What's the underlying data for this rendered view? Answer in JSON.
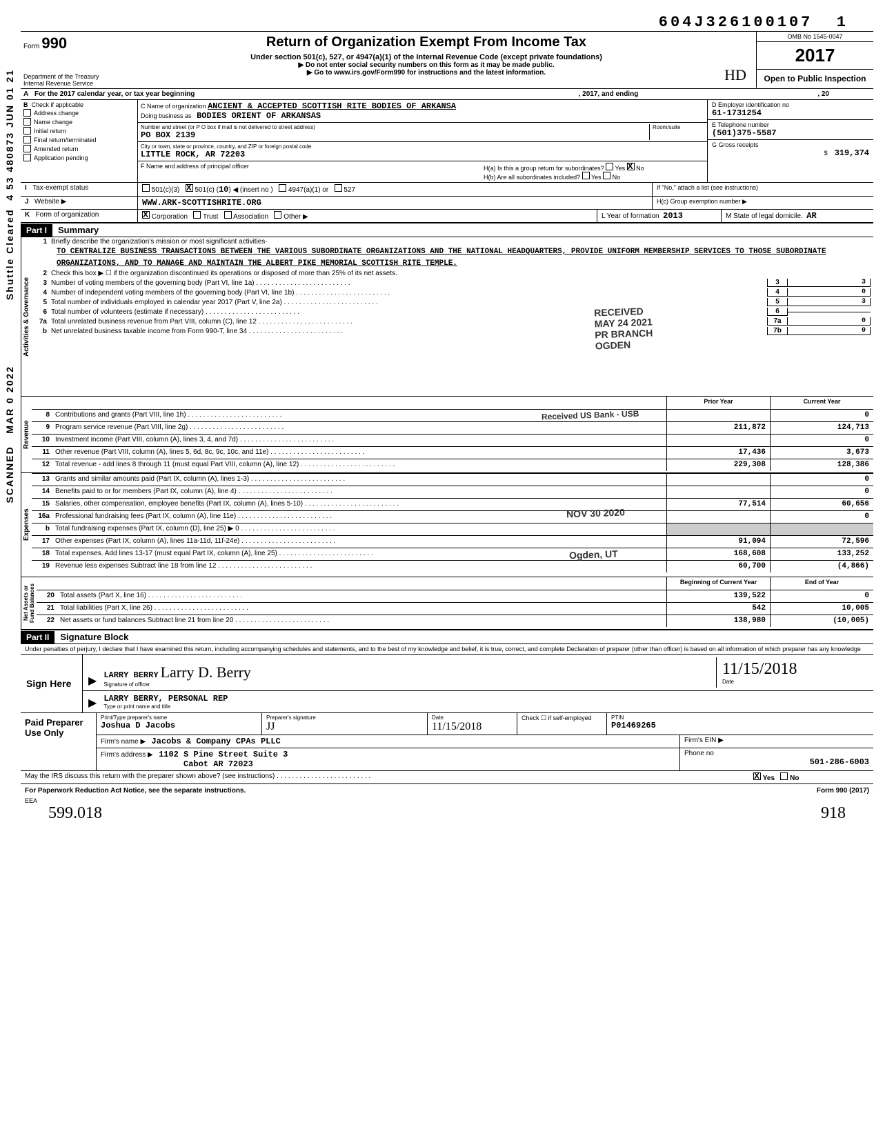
{
  "header_id": "604J326100107",
  "header_id_trail": "1",
  "omb_no": "OMB No 1545-0047",
  "tax_year": "2017",
  "form_label": "Form",
  "form_number": "990",
  "title": "Return of Organization Exempt From Income Tax",
  "subtitle": "Under section 501(c), 527, or 4947(a)(1) of the Internal Revenue Code (except private foundations)",
  "arrow1": "▶ Do not enter social security numbers on this form as it may be made public.",
  "arrow2": "▶ Go to www.irs.gov/Form990 for instructions and the latest information.",
  "open_public": "Open to Public Inspection",
  "dept1": "Department of the Treasury",
  "dept2": "Internal Revenue Service",
  "row_a": "For the 2017 calendar year, or tax year beginning",
  "row_a_mid": ", 2017, and ending",
  "row_a_end": ", 20",
  "section_b": {
    "label": "Check if applicable",
    "items": [
      "Address change",
      "Name change",
      "Initial return",
      "Final return/terminated",
      "Amended return",
      "Application pending"
    ]
  },
  "section_c": {
    "name_label": "C  Name of organization",
    "name": "ANCIENT & ACCEPTED SCOTTISH RITE BODIES OF ARKANSA",
    "dba_label": "Doing business as",
    "dba": "BODIES ORIENT OF ARKANSAS",
    "street_label": "Number and street (or P O  box if mail is not delivered to street address)",
    "room_label": "Room/suite",
    "street": "PO BOX 2139",
    "city_label": "City or town, state or province, country, and ZIP or foreign postal code",
    "city": "LITTLE ROCK, AR 72203",
    "officer_label": "F  Name and address of principal officer"
  },
  "section_d": {
    "ein_label": "D   Employer identification no",
    "ein": "61-1731254",
    "phone_label": "E   Telephone number",
    "phone": "(501)375-5587",
    "gross_label": "G   Gross receipts",
    "gross": "319,374"
  },
  "section_h": {
    "ha": "H(a) Is this a group return for subordinates?",
    "hb": "H(b) Are all subordinates included?",
    "hc_note": "If \"No,\" attach a list (see instructions)",
    "hc": "H(c)   Group exemption number  ▶"
  },
  "row_i": {
    "label": "Tax-exempt status",
    "opts": [
      "501(c)(3)",
      "501(c) (",
      "10",
      ")  ◀ (insert no )",
      "4947(a)(1) or",
      "527"
    ]
  },
  "row_j": {
    "label": "Website  ▶",
    "value": "WWW.ARK-SCOTTISHRITE.ORG"
  },
  "row_k": {
    "label": "Form of organization",
    "opts": [
      "Corporation",
      "Trust",
      "Association",
      "Other ▶"
    ],
    "year_label": "L  Year of formation",
    "year": "2013",
    "state_label": "M   State of legal domicile.",
    "state": "AR"
  },
  "part1": {
    "header": "Part I",
    "title": "Summary"
  },
  "gov_label": "Activities & Governance",
  "mission_label": "Briefly describe the organization's mission or most significant activities·",
  "mission": "TO CENTRALIZE BUSINESS TRANSACTIONS BETWEEN THE VARIOUS SUBORDINATE ORGANIZATIONS AND THE NATIONAL HEADQUARTERS, PROVIDE UNIFORM MEMBERSHIP SERVICES TO THOSE SUBORDINATE ORGANIZATIONS, AND TO MANAGE AND MAINTAIN THE ALBERT PIKE MEMORIAL SCOTTISH RITE TEMPLE.",
  "line2": "Check this box ▶ ☐ if the organization discontinued its operations or disposed of more than 25% of its net assets.",
  "gov_lines": [
    {
      "n": "3",
      "d": "Number of voting members of the governing body (Part VI, line 1a)",
      "box": "3",
      "v": "3"
    },
    {
      "n": "4",
      "d": "Number of independent voting members of the governing body (Part VI, line 1b)",
      "box": "4",
      "v": "0"
    },
    {
      "n": "5",
      "d": "Total number of individuals employed in calendar year 2017 (Part V, line 2a)",
      "box": "5",
      "v": "3"
    },
    {
      "n": "6",
      "d": "Total number of volunteers (estimate if necessary)",
      "box": "6",
      "v": ""
    },
    {
      "n": "7a",
      "d": "Total unrelated business revenue from Part VIII, column (C), line 12",
      "box": "7a",
      "v": "0"
    },
    {
      "n": "b",
      "d": "Net unrelated business taxable income from Form 990-T, line 34",
      "box": "7b",
      "v": "0"
    }
  ],
  "stamps": {
    "received": "RECEIVED",
    "date1": "MAY 24 2021",
    "branch": "PR BRANCH",
    "ogden1": "OGDEN",
    "received2": "Received US Bank - USB",
    "date2": "NOV 30 2020",
    "ogden2": "Ogden, UT"
  },
  "rev_label": "Revenue",
  "fin_head_prior": "Prior Year",
  "fin_head_current": "Current Year",
  "rev_lines": [
    {
      "n": "8",
      "d": "Contributions and grants (Part VIII, line 1h)",
      "p": "",
      "c": "0"
    },
    {
      "n": "9",
      "d": "Program service revenue (Part VIII, line 2g)",
      "p": "211,872",
      "c": "124,713"
    },
    {
      "n": "10",
      "d": "Investment income (Part VIII, column (A), lines 3, 4, and 7d)",
      "p": "",
      "c": "0"
    },
    {
      "n": "11",
      "d": "Other revenue (Part VIII, column (A), lines 5, 6d, 8c, 9c, 10c, and 11e)",
      "p": "17,436",
      "c": "3,673"
    },
    {
      "n": "12",
      "d": "Total revenue - add lines 8 through 11 (must equal Part VIII, column (A), line 12)",
      "p": "229,308",
      "c": "128,386"
    }
  ],
  "exp_label": "Expenses",
  "exp_lines": [
    {
      "n": "13",
      "d": "Grants and similar amounts paid (Part IX, column (A), lines 1-3)",
      "p": "",
      "c": "0"
    },
    {
      "n": "14",
      "d": "Benefits paid to or for members (Part IX, column (A), line 4)",
      "p": "",
      "c": "0"
    },
    {
      "n": "15",
      "d": "Salaries, other compensation, employee benefits (Part IX, column (A), lines 5-10)",
      "p": "77,514",
      "c": "60,656"
    },
    {
      "n": "16a",
      "d": "Professional fundraising fees (Part IX, column (A), line 11e)",
      "p": "",
      "c": "0"
    },
    {
      "n": "b",
      "d": "Total fundraising expenses (Part IX, column (D), line 25)  ▶                               0",
      "p": "",
      "c": ""
    },
    {
      "n": "17",
      "d": "Other expenses (Part IX, column (A), lines 11a-11d, 11f-24e)",
      "p": "91,094",
      "c": "72,596"
    },
    {
      "n": "18",
      "d": "Total expenses.  Add lines 13-17 (must equal Part IX, column (A), line 25)",
      "p": "168,608",
      "c": "133,252"
    },
    {
      "n": "19",
      "d": "Revenue less expenses  Subtract line 18 from line 12",
      "p": "60,700",
      "c": "(4,866)"
    }
  ],
  "net_label": "Net Assets or Fund Balances",
  "net_head_begin": "Beginning of Current Year",
  "net_head_end": "End of Year",
  "net_lines": [
    {
      "n": "20",
      "d": "Total assets (Part X, line 16)",
      "p": "139,522",
      "c": "0"
    },
    {
      "n": "21",
      "d": "Total liabilities (Part X, line 26)",
      "p": "542",
      "c": "10,005"
    },
    {
      "n": "22",
      "d": "Net assets or fund balances  Subtract line 21 from line 20",
      "p": "138,980",
      "c": "(10,005)"
    }
  ],
  "part2": {
    "header": "Part II",
    "title": "Signature Block"
  },
  "sig_statement": "Under penalties of perjury, I declare that I have examined this return, including accompanying schedules and statements, and to the best of my knowledge and belief, it is true, correct, and complete  Declaration of preparer (other than officer) is based on all information of which preparer has any knowledge",
  "sign_here": "Sign Here",
  "sig_name": "LARRY BERRY",
  "sig_cursive": "Larry D. Berry",
  "sig_under1": "Signature of officer",
  "sig_title": "LARRY BERRY, PERSONAL REP",
  "sig_under2": "Type or print name and title",
  "sig_date_label": "Date",
  "sig_date": "11/15/2018",
  "paid_left": "Paid Preparer Use Only",
  "prep_name_label": "Print/Type preparer's name",
  "prep_name": "Joshua D Jacobs",
  "prep_sig_label": "Preparer's signature",
  "prep_date_label": "Date",
  "prep_date": "11/15/2018",
  "check_label": "Check ☐ if self-employed",
  "ptin_label": "PTIN",
  "ptin": "P01469265",
  "firm_name_label": "Firm's name    ▶",
  "firm_name": "Jacobs & Company CPAs PLLC",
  "firm_ein_label": "Firm's EIN  ▶",
  "firm_addr_label": "Firm's address ▶",
  "firm_addr1": "1102 S Pine Street Suite 3",
  "firm_addr2": "Cabot AR 72023",
  "firm_phone_label": "Phone no",
  "firm_phone": "501-286-6003",
  "discuss": "May the IRS discuss this return with the preparer shown above? (see instructions)",
  "discuss_yes": "Yes",
  "discuss_no": "No",
  "paperwork": "For Paperwork Reduction Act Notice, see the separate instructions.",
  "eea": "EEA",
  "form_foot": "Form 990 (2017)",
  "bottom_hand": "599.018",
  "bottom_hand2": "918",
  "side1": "Shuttle Cleared",
  "side2": "4 53 480873 JUN 01 21",
  "side3": "MAR 0  2022",
  "side4": "SCANNED"
}
